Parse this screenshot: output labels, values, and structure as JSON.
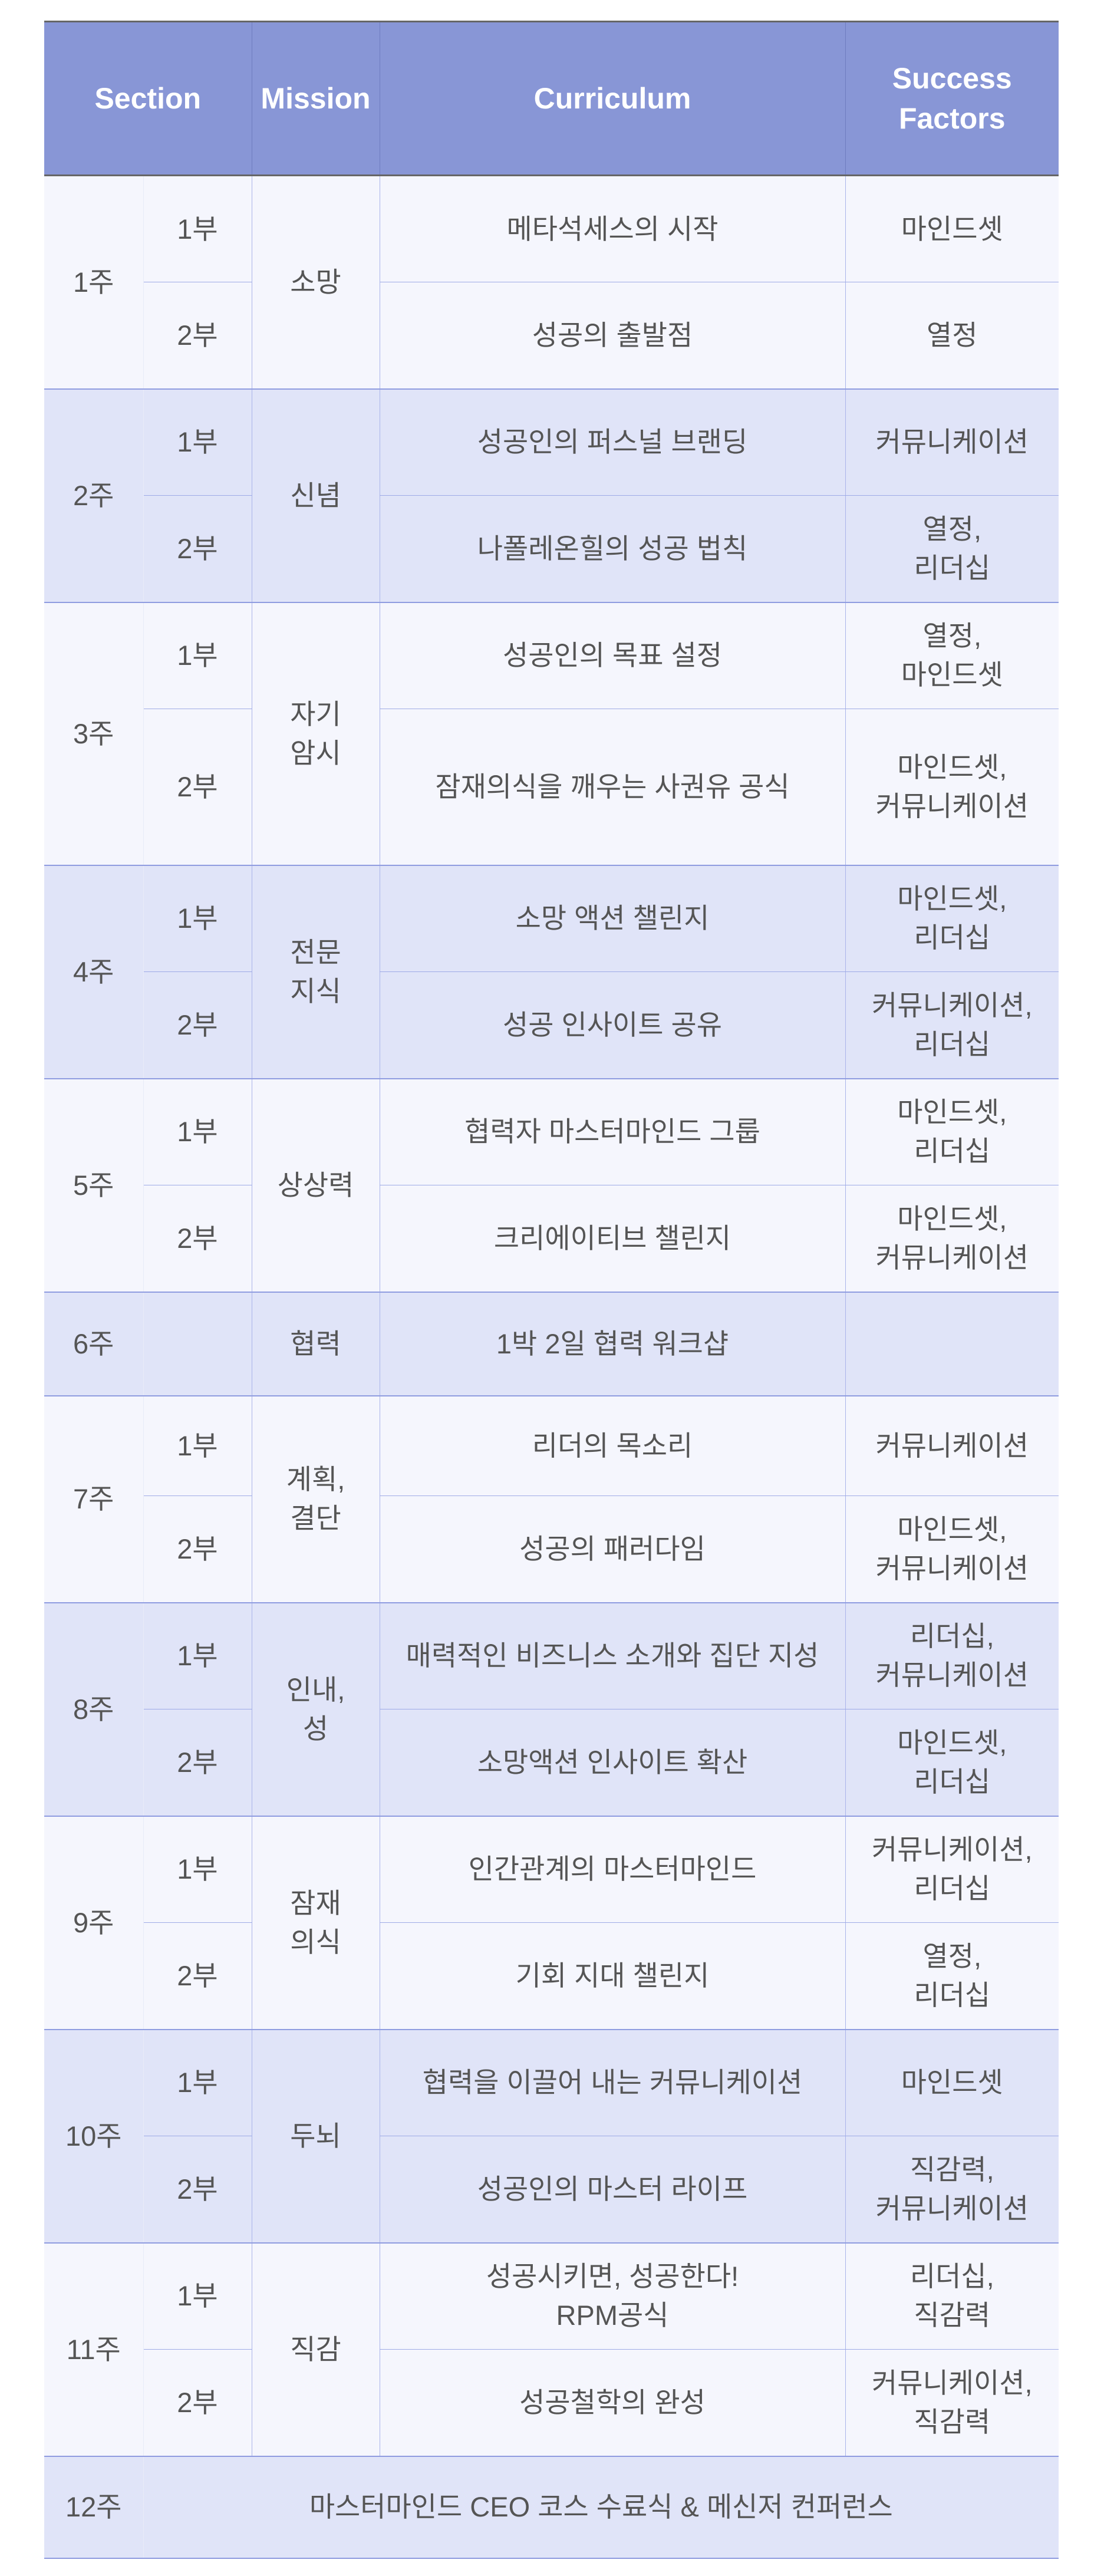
{
  "header": {
    "section": "Section",
    "mission": "Mission",
    "curriculum": "Curriculum",
    "success_factors": "Success\nFactors"
  },
  "colors": {
    "header_bg": "#8896d6",
    "row_light": "#f5f6fd",
    "row_tint": "#e0e4f8",
    "border": "#aab4ea",
    "text": "#555555"
  },
  "weeks": [
    {
      "week": "1주",
      "mission": "소망",
      "parts": [
        {
          "part": "1부",
          "curriculum": "메타석세스의 시작",
          "factors": "마인드셋"
        },
        {
          "part": "2부",
          "curriculum": "성공의 출발점",
          "factors": "열정"
        }
      ]
    },
    {
      "week": "2주",
      "mission": "신념",
      "parts": [
        {
          "part": "1부",
          "curriculum": "성공인의 퍼스널 브랜딩",
          "factors": "커뮤니케이션"
        },
        {
          "part": "2부",
          "curriculum": "나폴레온힐의 성공 법칙",
          "factors": "열정,\n리더십"
        }
      ]
    },
    {
      "week": "3주",
      "mission": "자기\n암시",
      "parts": [
        {
          "part": "1부",
          "curriculum": "성공인의 목표 설정",
          "factors": "열정,\n마인드셋"
        },
        {
          "part": "2부",
          "curriculum": "잠재의식을 깨우는 사권유 공식",
          "factors": "마인드셋,\n커뮤니케이션"
        }
      ]
    },
    {
      "week": "4주",
      "mission": "전문\n지식",
      "parts": [
        {
          "part": "1부",
          "curriculum": "소망 액션 챌린지",
          "factors": "마인드셋,\n리더십"
        },
        {
          "part": "2부",
          "curriculum": "성공 인사이트 공유",
          "factors": "커뮤니케이션,\n리더십"
        }
      ]
    },
    {
      "week": "5주",
      "mission": "상상력",
      "parts": [
        {
          "part": "1부",
          "curriculum": "협력자 마스터마인드 그룹",
          "factors": "마인드셋,\n리더십"
        },
        {
          "part": "2부",
          "curriculum": "크리에이티브 챌린지",
          "factors": "마인드셋,\n커뮤니케이션"
        }
      ]
    },
    {
      "week": "6주",
      "mission": "협력",
      "parts": [
        {
          "part": "",
          "curriculum": "1박 2일 협력 워크샵",
          "factors": ""
        }
      ]
    },
    {
      "week": "7주",
      "mission": "계획,\n결단",
      "parts": [
        {
          "part": "1부",
          "curriculum": "리더의 목소리",
          "factors": "커뮤니케이션"
        },
        {
          "part": "2부",
          "curriculum": "성공의 패러다임",
          "factors": "마인드셋,\n커뮤니케이션"
        }
      ]
    },
    {
      "week": "8주",
      "mission": "인내,\n성",
      "parts": [
        {
          "part": "1부",
          "curriculum": "매력적인 비즈니스 소개와 집단 지성",
          "factors": "리더십,\n커뮤니케이션"
        },
        {
          "part": "2부",
          "curriculum": "소망액션 인사이트 확산",
          "factors": "마인드셋,\n리더십"
        }
      ]
    },
    {
      "week": "9주",
      "mission": "잠재\n의식",
      "parts": [
        {
          "part": "1부",
          "curriculum": "인간관계의 마스터마인드",
          "factors": "커뮤니케이션,\n리더십"
        },
        {
          "part": "2부",
          "curriculum": "기회 지대 챌린지",
          "factors": "열정,\n리더십"
        }
      ]
    },
    {
      "week": "10주",
      "mission": "두뇌",
      "parts": [
        {
          "part": "1부",
          "curriculum": "협력을 이끌어 내는 커뮤니케이션",
          "factors": "마인드셋"
        },
        {
          "part": "2부",
          "curriculum": "성공인의 마스터 라이프",
          "factors": "직감력,\n커뮤니케이션"
        }
      ]
    },
    {
      "week": "11주",
      "mission": "직감",
      "parts": [
        {
          "part": "1부",
          "curriculum": "성공시키면, 성공한다!\nRPM공식",
          "factors": "리더십,\n직감력"
        },
        {
          "part": "2부",
          "curriculum": "성공철학의 완성",
          "factors": "커뮤니케이션,\n직감력"
        }
      ]
    }
  ],
  "final": {
    "week": "12주",
    "text": "마스터마인드 CEO 코스 수료식 & 메신저 컨퍼런스"
  }
}
